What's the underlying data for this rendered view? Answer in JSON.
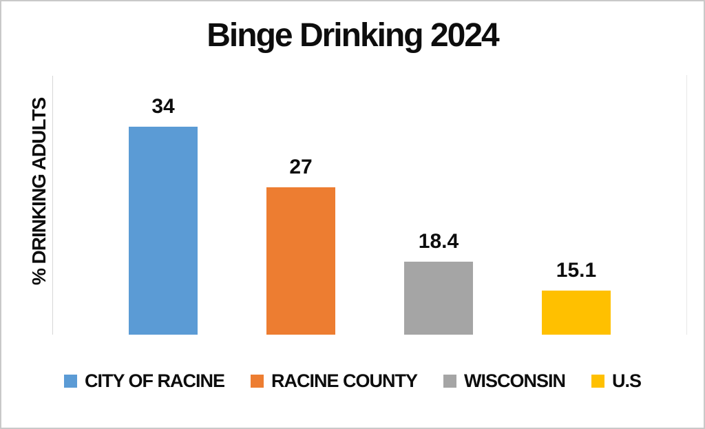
{
  "frame": {
    "background_color": "#FFFFFF",
    "border_color": "#C9C9C9",
    "axis_line_color": "#D6D6D6",
    "gridline_color": "#E7E7E7",
    "text_color": "#0D0D0D"
  },
  "chart_data": {
    "type": "bar",
    "title": "Binge Drinking 2024",
    "xlabel": "",
    "ylabel": "% DRINKING ADULTS",
    "categories": [
      "CITY OF RACINE",
      "RACINE COUNTY",
      "WISCONSIN",
      "U.S"
    ],
    "values": [
      34,
      27,
      18.4,
      15.1
    ],
    "data_labels": [
      "34",
      "27",
      "18.4",
      "15.1"
    ],
    "colors": [
      "#5B9BD5",
      "#ED7D31",
      "#A5A5A5",
      "#FFC000"
    ],
    "ylim": [
      10,
      40
    ],
    "grid": false,
    "axis_tick_labels_visible": false,
    "legend_position": "bottom",
    "legend": [
      {
        "label": "CITY OF RACINE",
        "color": "#5B9BD5"
      },
      {
        "label": "RACINE COUNTY",
        "color": "#ED7D31"
      },
      {
        "label": "WISCONSIN",
        "color": "#A5A5A5"
      },
      {
        "label": "U.S",
        "color": "#FFC000"
      }
    ]
  }
}
